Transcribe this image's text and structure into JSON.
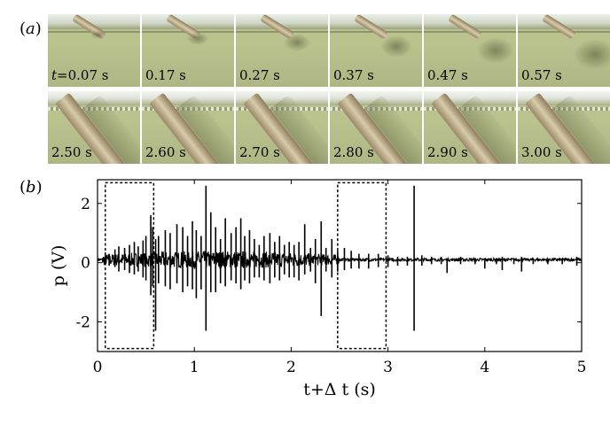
{
  "panel_a": {
    "label_letter": "a",
    "frames": [
      {
        "row": 1,
        "col": 0,
        "prefix": "t",
        "text": "=0.07 s"
      },
      {
        "row": 1,
        "col": 1,
        "prefix": "",
        "text": "0.17 s"
      },
      {
        "row": 1,
        "col": 2,
        "prefix": "",
        "text": "0.27 s"
      },
      {
        "row": 1,
        "col": 3,
        "prefix": "",
        "text": "0.37 s"
      },
      {
        "row": 1,
        "col": 4,
        "prefix": "",
        "text": "0.47 s"
      },
      {
        "row": 1,
        "col": 5,
        "prefix": "",
        "text": "0.57 s"
      },
      {
        "row": 2,
        "col": 0,
        "prefix": "",
        "text": "2.50 s"
      },
      {
        "row": 2,
        "col": 1,
        "prefix": "",
        "text": "2.60 s"
      },
      {
        "row": 2,
        "col": 2,
        "prefix": "",
        "text": "2.70 s"
      },
      {
        "row": 2,
        "col": 3,
        "prefix": "",
        "text": "2.80 s"
      },
      {
        "row": 2,
        "col": 4,
        "prefix": "",
        "text": "2.90 s"
      },
      {
        "row": 2,
        "col": 5,
        "prefix": "",
        "text": "3.00 s"
      }
    ]
  },
  "panel_b": {
    "label_letter": "b"
  },
  "chart_data": {
    "type": "line",
    "xlabel": "t+Δ t (s)",
    "ylabel": "p (V)",
    "xlim": [
      0,
      5
    ],
    "ylim": [
      -3,
      2.8
    ],
    "xticks": [
      0,
      1,
      2,
      3,
      4,
      5
    ],
    "yticks": [
      -2,
      0,
      2
    ],
    "ytick_labels": [
      "-2",
      "0",
      "2"
    ],
    "baseline": 0.1,
    "series": [
      {
        "spikes": [
          [
            0.08,
            0.35,
            -0.05
          ],
          [
            0.12,
            0.3,
            -0.1
          ],
          [
            0.18,
            0.45,
            -0.15
          ],
          [
            0.22,
            0.55,
            -0.3
          ],
          [
            0.28,
            0.5,
            -0.25
          ],
          [
            0.33,
            0.6,
            -0.35
          ],
          [
            0.38,
            0.7,
            -0.4
          ],
          [
            0.42,
            0.55,
            -0.3
          ],
          [
            0.47,
            0.75,
            -0.5
          ],
          [
            0.5,
            0.9,
            -0.6
          ],
          [
            0.55,
            1.6,
            -1.1
          ],
          [
            0.57,
            1.2,
            -0.8
          ],
          [
            0.6,
            0.8,
            -2.3
          ],
          [
            0.63,
            0.9,
            -0.7
          ],
          [
            0.7,
            1.1,
            -0.8
          ],
          [
            0.75,
            1.0,
            -0.9
          ],
          [
            0.82,
            1.3,
            -0.7
          ],
          [
            0.88,
            1.2,
            -1.0
          ],
          [
            0.93,
            0.9,
            -0.8
          ],
          [
            0.98,
            1.4,
            -0.9
          ],
          [
            1.02,
            1.1,
            -1.2
          ],
          [
            1.07,
            0.9,
            -0.9
          ],
          [
            1.12,
            2.6,
            -2.3
          ],
          [
            1.17,
            1.7,
            -1.0
          ],
          [
            1.22,
            1.2,
            -1.0
          ],
          [
            1.27,
            0.8,
            -0.7
          ],
          [
            1.32,
            1.5,
            -0.8
          ],
          [
            1.38,
            1.0,
            -0.6
          ],
          [
            1.43,
            1.2,
            -0.7
          ],
          [
            1.48,
            1.5,
            -0.9
          ],
          [
            1.52,
            0.9,
            -0.6
          ],
          [
            1.57,
            1.1,
            -0.7
          ],
          [
            1.62,
            0.8,
            -0.5
          ],
          [
            1.67,
            0.6,
            -0.5
          ],
          [
            1.72,
            0.9,
            -0.6
          ],
          [
            1.78,
            1.0,
            -0.7
          ],
          [
            1.83,
            0.7,
            -0.5
          ],
          [
            1.88,
            0.9,
            -0.6
          ],
          [
            1.93,
            0.6,
            -0.4
          ],
          [
            1.98,
            0.7,
            -0.5
          ],
          [
            2.03,
            0.6,
            -0.5
          ],
          [
            2.08,
            0.7,
            -0.6
          ],
          [
            2.14,
            1.3,
            -0.4
          ],
          [
            2.2,
            0.5,
            -0.3
          ],
          [
            2.25,
            0.8,
            -0.7
          ],
          [
            2.31,
            1.4,
            -1.8
          ],
          [
            2.36,
            0.5,
            -0.3
          ],
          [
            2.42,
            0.8,
            -0.5
          ],
          [
            2.48,
            0.4,
            -0.3
          ],
          [
            2.55,
            0.5,
            -0.25
          ],
          [
            2.62,
            0.4,
            -0.2
          ],
          [
            2.7,
            0.3,
            -0.2
          ],
          [
            2.8,
            0.3,
            -0.2
          ],
          [
            2.9,
            0.3,
            -0.15
          ],
          [
            3.0,
            0.25,
            -0.15
          ],
          [
            3.1,
            0.2,
            -0.1
          ],
          [
            3.2,
            0.2,
            -0.1
          ],
          [
            3.27,
            2.6,
            -2.3
          ],
          [
            3.35,
            0.25,
            -0.1
          ],
          [
            3.45,
            0.2,
            -0.05
          ],
          [
            3.55,
            0.2,
            -0.05
          ],
          [
            3.61,
            0.15,
            -0.35
          ],
          [
            3.75,
            0.2,
            -0.05
          ],
          [
            3.9,
            0.15,
            -0.05
          ],
          [
            4.0,
            0.15,
            -0.2
          ],
          [
            4.12,
            0.15,
            -0.05
          ],
          [
            4.18,
            0.2,
            -0.25
          ],
          [
            4.3,
            0.15,
            -0.05
          ],
          [
            4.38,
            0.2,
            -0.3
          ],
          [
            4.5,
            0.15,
            -0.05
          ],
          [
            4.65,
            0.15,
            -0.05
          ],
          [
            4.8,
            0.15,
            -0.05
          ],
          [
            4.95,
            0.2,
            -0.1
          ]
        ]
      }
    ],
    "boxes": [
      {
        "x0": 0.08,
        "x1": 0.58,
        "y0": -2.9,
        "y1": 2.7
      },
      {
        "x0": 2.48,
        "x1": 2.98,
        "y0": -2.9,
        "y1": 2.7
      }
    ]
  }
}
